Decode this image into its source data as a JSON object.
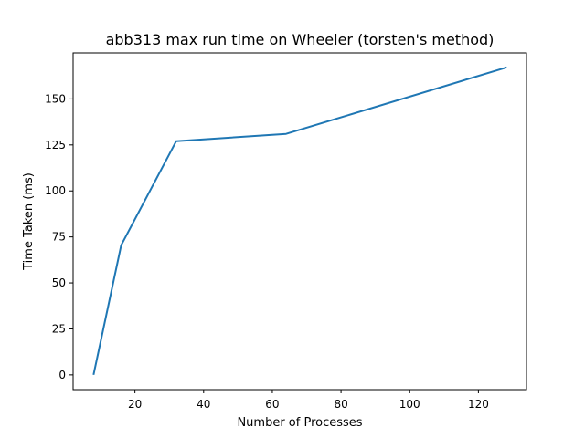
{
  "chart_data": {
    "type": "line",
    "title": "abb313 max run time on Wheeler (torsten's method)",
    "xlabel": "Number of Processes",
    "ylabel": "Time Taken (ms)",
    "xlim": [
      2,
      134
    ],
    "ylim": [
      -8,
      175
    ],
    "xticks": [
      20,
      40,
      60,
      80,
      100,
      120
    ],
    "xtick_labels": [
      "20",
      "40",
      "60",
      "80",
      "100",
      "120"
    ],
    "yticks": [
      0,
      25,
      50,
      75,
      100,
      125,
      150
    ],
    "ytick_labels": [
      "0",
      "25",
      "50",
      "75",
      "100",
      "125",
      "150"
    ],
    "grid": false,
    "series": [
      {
        "color": "#1f77b4",
        "x": [
          8,
          16,
          32,
          64,
          128
        ],
        "y": [
          0.5,
          70.5,
          127,
          131,
          167
        ]
      }
    ]
  }
}
